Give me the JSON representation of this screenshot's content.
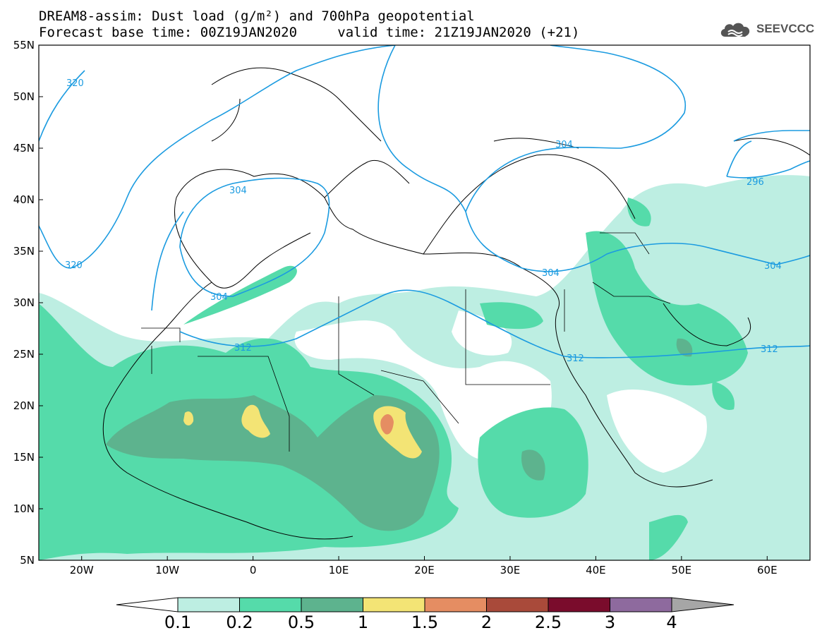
{
  "title": {
    "line1": "DREAM8-assim: Dust load (g/m²) and 700hPa geopotential",
    "line2_left": "Forecast base time: 00Z19JAN2020",
    "line2_right": "valid time: 21Z19JAN2020 (+21)"
  },
  "logo": {
    "text": "SEEVCCC",
    "icon": "cloud-icon"
  },
  "axes": {
    "lat_labels": [
      "55N",
      "50N",
      "45N",
      "40N",
      "35N",
      "30N",
      "25N",
      "20N",
      "15N",
      "10N",
      "5N"
    ],
    "lon_labels": [
      "20W",
      "10W",
      "0",
      "10E",
      "20E",
      "30E",
      "40E",
      "50E",
      "60E"
    ],
    "lat_range": [
      5,
      55
    ],
    "lon_range": [
      -25,
      65
    ]
  },
  "contour_labels": [
    "320",
    "320",
    "304",
    "304",
    "312",
    "304",
    "304",
    "312",
    "296",
    "304",
    "312"
  ],
  "colorbar": {
    "labels": [
      "0.1",
      "0.2",
      "0.5",
      "1",
      "1.5",
      "2",
      "2.5",
      "3",
      "4"
    ],
    "colors": [
      "#ffffff",
      "#bdeee2",
      "#55dbaa",
      "#5db38e",
      "#f3e475",
      "#e58d62",
      "#a94a3a",
      "#7a0c2c",
      "#8e6a9e",
      "#a6a6a6"
    ]
  },
  "colors": {
    "contour_line": "#1b9be0",
    "coastline": "#000000"
  }
}
